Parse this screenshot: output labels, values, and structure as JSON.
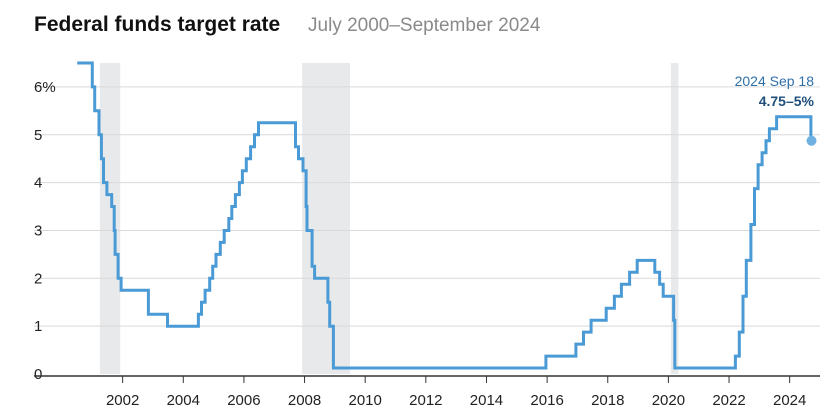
{
  "chart_data": {
    "type": "line",
    "title": "Federal funds target rate",
    "subtitle": "July 2000–September 2024",
    "xlabel": "",
    "ylabel": "",
    "ylim": [
      0,
      6.5
    ],
    "y_ticks": [
      {
        "value": 0,
        "label": "0"
      },
      {
        "value": 1,
        "label": "1"
      },
      {
        "value": 2,
        "label": "2"
      },
      {
        "value": 3,
        "label": "3"
      },
      {
        "value": 4,
        "label": "4"
      },
      {
        "value": 5,
        "label": "5"
      },
      {
        "value": 6,
        "label": "6%"
      }
    ],
    "x_ticks": [
      {
        "value": 2002,
        "label": "2002"
      },
      {
        "value": 2004,
        "label": "2004"
      },
      {
        "value": 2006,
        "label": "2006"
      },
      {
        "value": 2008,
        "label": "2008"
      },
      {
        "value": 2010,
        "label": "2010"
      },
      {
        "value": 2012,
        "label": "2012"
      },
      {
        "value": 2014,
        "label": "2014"
      },
      {
        "value": 2016,
        "label": "2016"
      },
      {
        "value": 2018,
        "label": "2018"
      },
      {
        "value": 2020,
        "label": "2020"
      },
      {
        "value": 2022,
        "label": "2022"
      },
      {
        "value": 2024,
        "label": "2024"
      }
    ],
    "grid": true,
    "recessions": [
      {
        "start": 2001.25,
        "end": 2001.92
      },
      {
        "start": 2007.92,
        "end": 2009.5
      },
      {
        "start": 2020.08,
        "end": 2020.33
      }
    ],
    "series": [
      {
        "color": "#4a9ad6",
        "points": [
          [
            2000.5,
            6.5
          ],
          [
            2001.0,
            6.5
          ],
          [
            2001.0,
            6.0
          ],
          [
            2001.08,
            6.0
          ],
          [
            2001.08,
            5.5
          ],
          [
            2001.22,
            5.5
          ],
          [
            2001.22,
            5.0
          ],
          [
            2001.3,
            5.0
          ],
          [
            2001.3,
            4.5
          ],
          [
            2001.37,
            4.5
          ],
          [
            2001.37,
            4.0
          ],
          [
            2001.48,
            4.0
          ],
          [
            2001.48,
            3.75
          ],
          [
            2001.64,
            3.75
          ],
          [
            2001.64,
            3.5
          ],
          [
            2001.72,
            3.5
          ],
          [
            2001.72,
            3.0
          ],
          [
            2001.75,
            3.0
          ],
          [
            2001.75,
            2.5
          ],
          [
            2001.85,
            2.5
          ],
          [
            2001.85,
            2.0
          ],
          [
            2001.95,
            2.0
          ],
          [
            2001.95,
            1.75
          ],
          [
            2002.85,
            1.75
          ],
          [
            2002.85,
            1.25
          ],
          [
            2003.48,
            1.25
          ],
          [
            2003.48,
            1.0
          ],
          [
            2004.5,
            1.0
          ],
          [
            2004.5,
            1.25
          ],
          [
            2004.6,
            1.25
          ],
          [
            2004.6,
            1.5
          ],
          [
            2004.72,
            1.5
          ],
          [
            2004.72,
            1.75
          ],
          [
            2004.87,
            1.75
          ],
          [
            2004.87,
            2.0
          ],
          [
            2004.97,
            2.0
          ],
          [
            2004.97,
            2.25
          ],
          [
            2005.08,
            2.25
          ],
          [
            2005.08,
            2.5
          ],
          [
            2005.22,
            2.5
          ],
          [
            2005.22,
            2.75
          ],
          [
            2005.35,
            2.75
          ],
          [
            2005.35,
            3.0
          ],
          [
            2005.5,
            3.0
          ],
          [
            2005.5,
            3.25
          ],
          [
            2005.6,
            3.25
          ],
          [
            2005.6,
            3.5
          ],
          [
            2005.72,
            3.5
          ],
          [
            2005.72,
            3.75
          ],
          [
            2005.85,
            3.75
          ],
          [
            2005.85,
            4.0
          ],
          [
            2005.95,
            4.0
          ],
          [
            2005.95,
            4.25
          ],
          [
            2006.08,
            4.25
          ],
          [
            2006.08,
            4.5
          ],
          [
            2006.22,
            4.5
          ],
          [
            2006.22,
            4.75
          ],
          [
            2006.35,
            4.75
          ],
          [
            2006.35,
            5.0
          ],
          [
            2006.48,
            5.0
          ],
          [
            2006.48,
            5.25
          ],
          [
            2007.7,
            5.25
          ],
          [
            2007.7,
            4.75
          ],
          [
            2007.8,
            4.75
          ],
          [
            2007.8,
            4.5
          ],
          [
            2007.95,
            4.5
          ],
          [
            2007.95,
            4.25
          ],
          [
            2008.05,
            4.25
          ],
          [
            2008.05,
            3.5
          ],
          [
            2008.08,
            3.5
          ],
          [
            2008.08,
            3.0
          ],
          [
            2008.25,
            3.0
          ],
          [
            2008.25,
            2.25
          ],
          [
            2008.33,
            2.25
          ],
          [
            2008.33,
            2.0
          ],
          [
            2008.77,
            2.0
          ],
          [
            2008.77,
            1.5
          ],
          [
            2008.83,
            1.5
          ],
          [
            2008.83,
            1.0
          ],
          [
            2008.95,
            1.0
          ],
          [
            2008.95,
            0.125
          ],
          [
            2015.96,
            0.125
          ],
          [
            2015.96,
            0.375
          ],
          [
            2016.95,
            0.375
          ],
          [
            2016.95,
            0.625
          ],
          [
            2017.2,
            0.625
          ],
          [
            2017.2,
            0.875
          ],
          [
            2017.45,
            0.875
          ],
          [
            2017.45,
            1.125
          ],
          [
            2017.95,
            1.125
          ],
          [
            2017.95,
            1.375
          ],
          [
            2018.22,
            1.375
          ],
          [
            2018.22,
            1.625
          ],
          [
            2018.45,
            1.625
          ],
          [
            2018.45,
            1.875
          ],
          [
            2018.72,
            1.875
          ],
          [
            2018.72,
            2.125
          ],
          [
            2018.97,
            2.125
          ],
          [
            2018.97,
            2.375
          ],
          [
            2019.55,
            2.375
          ],
          [
            2019.55,
            2.125
          ],
          [
            2019.71,
            2.125
          ],
          [
            2019.71,
            1.875
          ],
          [
            2019.83,
            1.875
          ],
          [
            2019.83,
            1.625
          ],
          [
            2020.17,
            1.625
          ],
          [
            2020.17,
            1.125
          ],
          [
            2020.21,
            1.125
          ],
          [
            2020.21,
            0.125
          ],
          [
            2022.21,
            0.125
          ],
          [
            2022.21,
            0.375
          ],
          [
            2022.34,
            0.375
          ],
          [
            2022.34,
            0.875
          ],
          [
            2022.46,
            0.875
          ],
          [
            2022.46,
            1.625
          ],
          [
            2022.57,
            1.625
          ],
          [
            2022.57,
            2.375
          ],
          [
            2022.72,
            2.375
          ],
          [
            2022.72,
            3.125
          ],
          [
            2022.84,
            3.125
          ],
          [
            2022.84,
            3.875
          ],
          [
            2022.96,
            3.875
          ],
          [
            2022.96,
            4.375
          ],
          [
            2023.09,
            4.375
          ],
          [
            2023.09,
            4.625
          ],
          [
            2023.22,
            4.625
          ],
          [
            2023.22,
            4.875
          ],
          [
            2023.33,
            4.875
          ],
          [
            2023.33,
            5.125
          ],
          [
            2023.57,
            5.125
          ],
          [
            2023.57,
            5.375
          ],
          [
            2024.7,
            5.375
          ],
          [
            2024.7,
            4.875
          ],
          [
            2024.72,
            4.875
          ]
        ]
      }
    ],
    "endpoint": {
      "x": 2024.72,
      "y": 4.875
    },
    "annotation": {
      "date": "2024 Sep 18",
      "value": "4.75–5%"
    }
  }
}
